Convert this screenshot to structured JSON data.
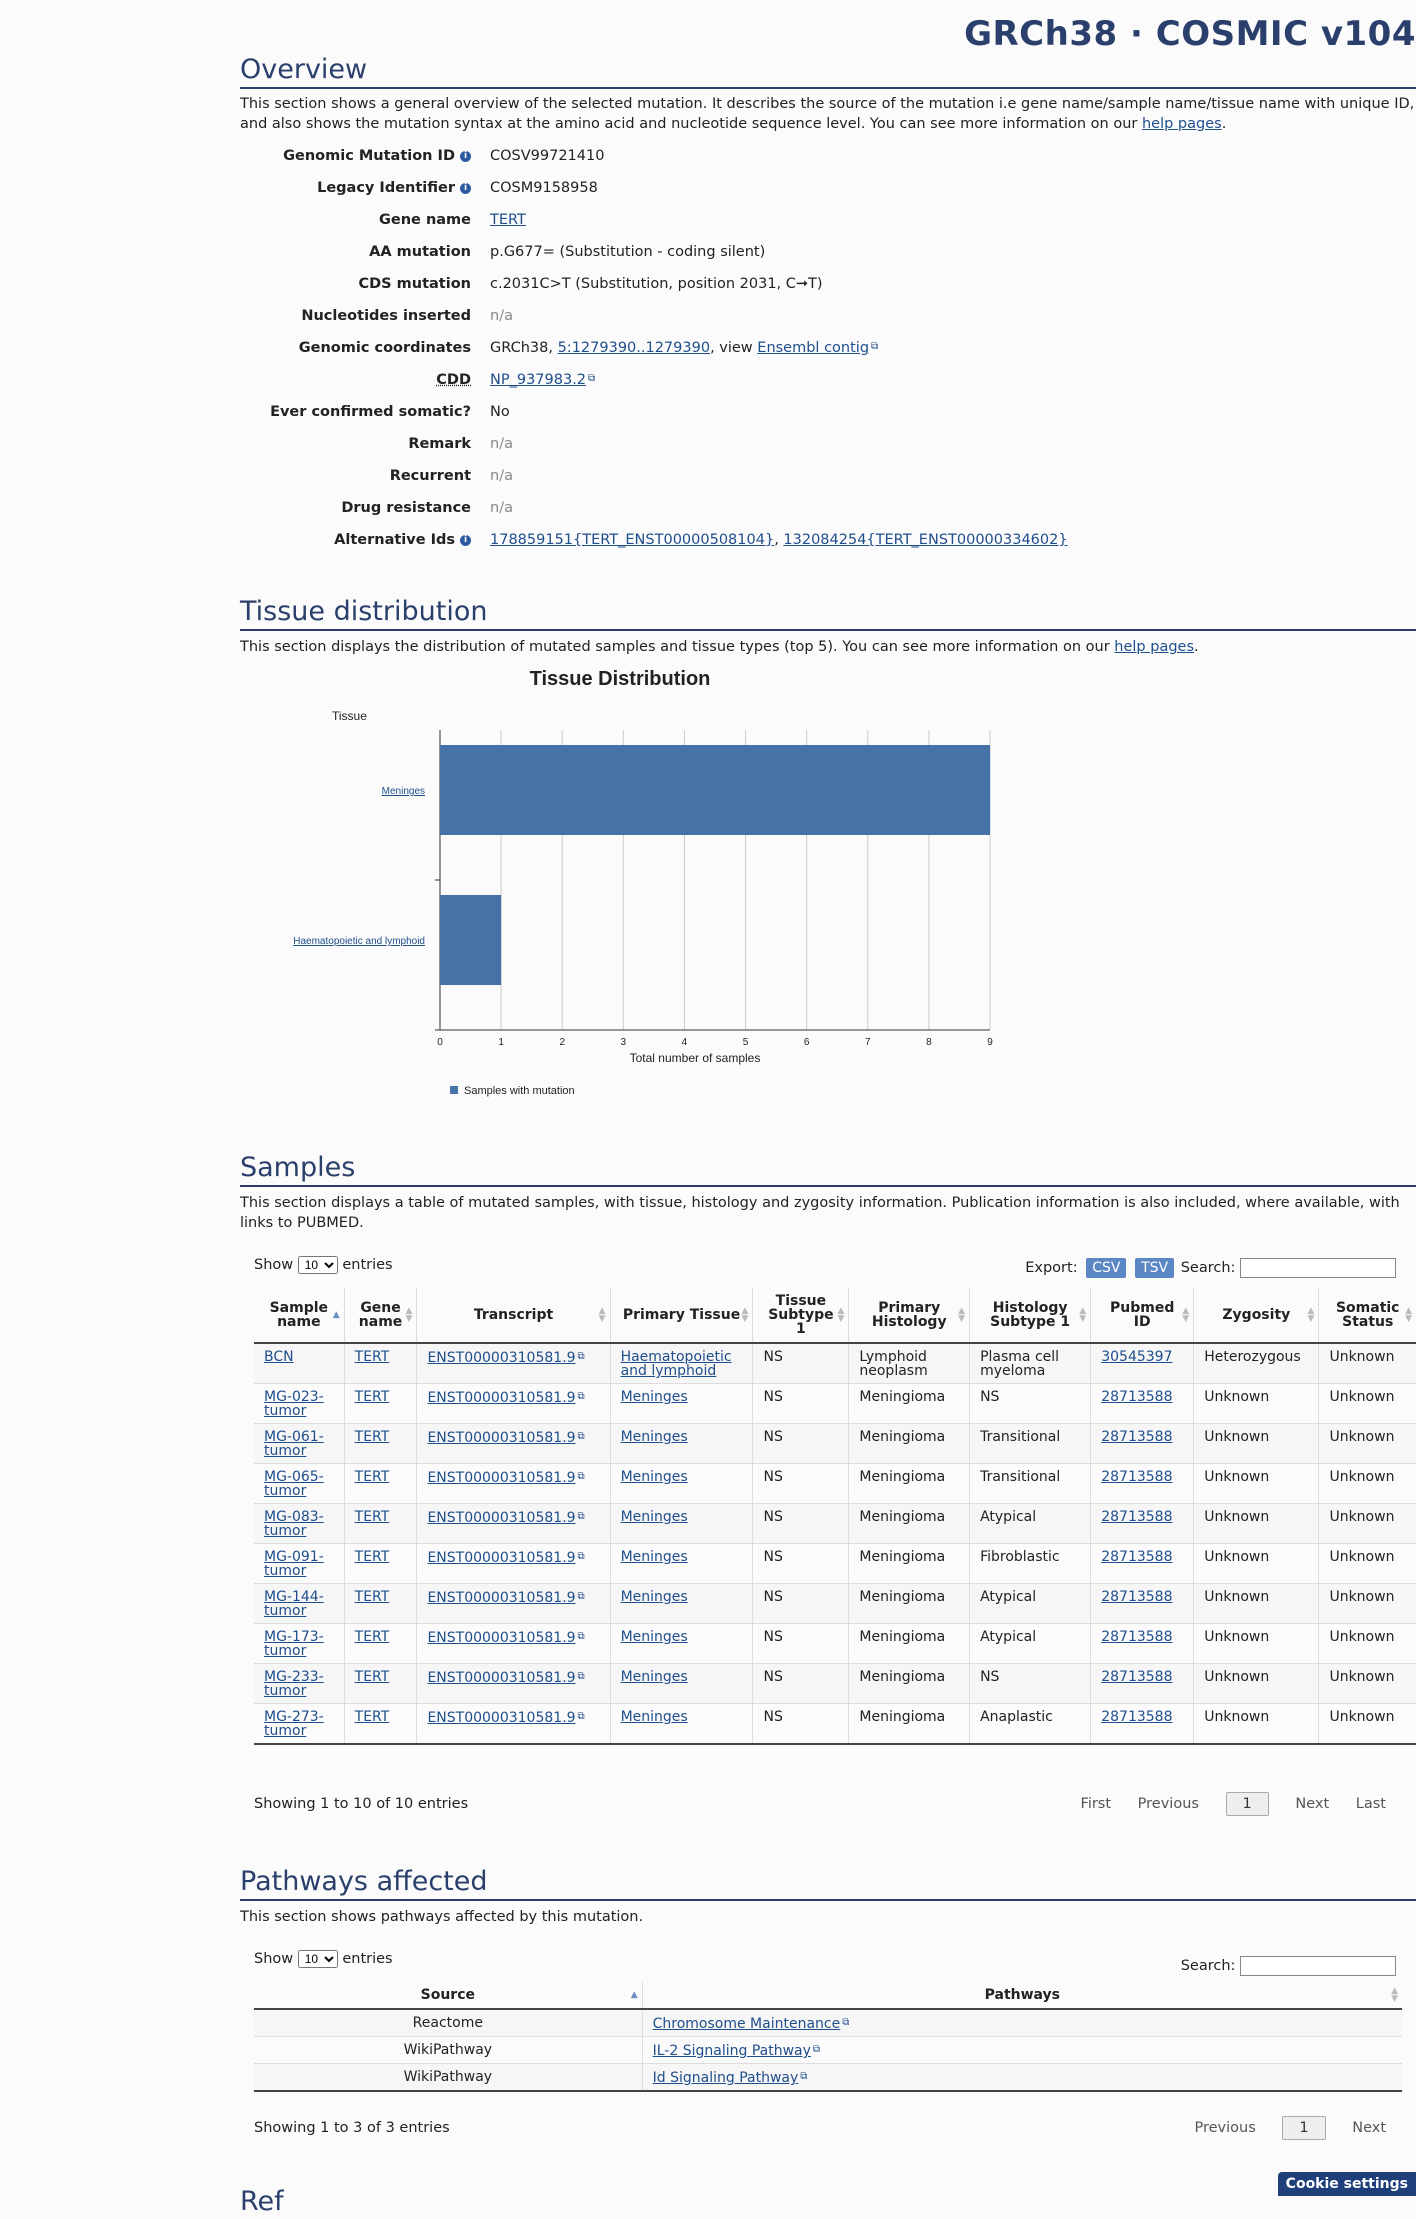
{
  "assembly_title": "GRCh38 · COSMIC v104",
  "overview": {
    "heading": "Overview",
    "description_pre": "This section shows a general overview of the selected mutation. It describes the source of the mutation i.e gene name/sample name/tissue name with unique ID, and also shows the mutation syntax at the amino acid and nucleotide sequence level. You can see more information on our ",
    "help_link": "help pages",
    "description_post": ".",
    "rows": {
      "genomic_mutation_id": {
        "label": "Genomic Mutation ID",
        "value": "COSV99721410"
      },
      "legacy_identifier": {
        "label": "Legacy Identifier",
        "value": "COSM9158958"
      },
      "gene_name": {
        "label": "Gene name",
        "value": "TERT"
      },
      "aa_mutation": {
        "label": "AA mutation",
        "value": "p.G677= (Substitution - coding silent)"
      },
      "cds_mutation": {
        "label": "CDS mutation",
        "value": "c.2031C>T (Substitution, position 2031, C➞T)"
      },
      "nucleotides_inserted": {
        "label": "Nucleotides inserted",
        "value": "n/a"
      },
      "genomic_coordinates": {
        "label": "Genomic coordinates",
        "pre": "GRCh38, ",
        "coord_link": "5:1279390..1279390",
        "mid": ", view ",
        "ensembl_link": "Ensembl contig"
      },
      "cdd": {
        "label": "CDD",
        "value": "NP_937983.2"
      },
      "ever_confirmed_somatic": {
        "label": "Ever confirmed somatic?",
        "value": "No"
      },
      "remark": {
        "label": "Remark",
        "value": "n/a"
      },
      "recurrent": {
        "label": "Recurrent",
        "value": "n/a"
      },
      "drug_resistance": {
        "label": "Drug resistance",
        "value": "n/a"
      },
      "alternative_ids": {
        "label": "Alternative Ids",
        "link1": "178859151{TERT_ENST00000508104}",
        "sep": ", ",
        "link2": "132084254{TERT_ENST00000334602}"
      }
    }
  },
  "tissue": {
    "heading": "Tissue distribution",
    "description_pre": "This section displays the distribution of mutated samples and tissue types (top 5). You can see more information on our ",
    "help_link": "help pages",
    "description_post": "."
  },
  "chart_data": {
    "type": "bar",
    "orientation": "horizontal",
    "title": "Tissue Distribution",
    "ylabel": "Tissue",
    "xlabel": "Total number of samples",
    "categories": [
      "Meninges",
      "Haematopoietic and lymphoid"
    ],
    "series": [
      {
        "name": "Samples with mutation",
        "values": [
          9,
          1
        ],
        "color": "#4573a7"
      }
    ],
    "xlim": [
      0,
      9
    ],
    "ticks": [
      "0",
      "1",
      "2",
      "3",
      "4",
      "5",
      "6",
      "7",
      "8",
      "9"
    ],
    "grid": true,
    "legend": "bottom"
  },
  "samples": {
    "heading": "Samples",
    "description": "This section displays a table of mutated samples, with tissue, histology and zygosity information. Publication information is also included, where available, with links to PUBMED.",
    "show_label": "Show",
    "entries_label": "entries",
    "page_length": "10",
    "export_label": "Export:",
    "csv": "CSV",
    "tsv": "TSV",
    "search_label": "Search:",
    "columns": [
      "Sample name",
      "Gene name",
      "Transcript",
      "Primary Tissue",
      "Tissue Subtype 1",
      "Primary Histology",
      "Histology Subtype 1",
      "Pubmed ID",
      "Zygosity",
      "Somatic Status"
    ],
    "rows": [
      [
        "BCN",
        "TERT",
        "ENST00000310581.9",
        "Haematopoietic and lymphoid",
        "NS",
        "Lymphoid neoplasm",
        "Plasma cell myeloma",
        "30545397",
        "Heterozygous",
        "Unknown"
      ],
      [
        "MG-023-tumor",
        "TERT",
        "ENST00000310581.9",
        "Meninges",
        "NS",
        "Meningioma",
        "NS",
        "28713588",
        "Unknown",
        "Unknown"
      ],
      [
        "MG-061-tumor",
        "TERT",
        "ENST00000310581.9",
        "Meninges",
        "NS",
        "Meningioma",
        "Transitional",
        "28713588",
        "Unknown",
        "Unknown"
      ],
      [
        "MG-065-tumor",
        "TERT",
        "ENST00000310581.9",
        "Meninges",
        "NS",
        "Meningioma",
        "Transitional",
        "28713588",
        "Unknown",
        "Unknown"
      ],
      [
        "MG-083-tumor",
        "TERT",
        "ENST00000310581.9",
        "Meninges",
        "NS",
        "Meningioma",
        "Atypical",
        "28713588",
        "Unknown",
        "Unknown"
      ],
      [
        "MG-091-tumor",
        "TERT",
        "ENST00000310581.9",
        "Meninges",
        "NS",
        "Meningioma",
        "Fibroblastic",
        "28713588",
        "Unknown",
        "Unknown"
      ],
      [
        "MG-144-tumor",
        "TERT",
        "ENST00000310581.9",
        "Meninges",
        "NS",
        "Meningioma",
        "Atypical",
        "28713588",
        "Unknown",
        "Unknown"
      ],
      [
        "MG-173-tumor",
        "TERT",
        "ENST00000310581.9",
        "Meninges",
        "NS",
        "Meningioma",
        "Atypical",
        "28713588",
        "Unknown",
        "Unknown"
      ],
      [
        "MG-233-tumor",
        "TERT",
        "ENST00000310581.9",
        "Meninges",
        "NS",
        "Meningioma",
        "NS",
        "28713588",
        "Unknown",
        "Unknown"
      ],
      [
        "MG-273-tumor",
        "TERT",
        "ENST00000310581.9",
        "Meninges",
        "NS",
        "Meningioma",
        "Anaplastic",
        "28713588",
        "Unknown",
        "Unknown"
      ]
    ],
    "info": "Showing 1 to 10 of 10 entries",
    "pager": {
      "first": "First",
      "previous": "Previous",
      "current": "1",
      "next": "Next",
      "last": "Last"
    }
  },
  "pathways": {
    "heading": "Pathways affected",
    "description": "This section shows pathways affected by this mutation.",
    "show_label": "Show",
    "entries_label": "entries",
    "page_length": "10",
    "search_label": "Search:",
    "columns": [
      "Source",
      "Pathways"
    ],
    "rows": [
      [
        "Reactome",
        "Chromosome Maintenance"
      ],
      [
        "WikiPathway",
        "IL-2 Signaling Pathway"
      ],
      [
        "WikiPathway",
        "Id Signaling Pathway"
      ]
    ],
    "info": "Showing 1 to 3 of 3 entries",
    "pager": {
      "previous": "Previous",
      "current": "1",
      "next": "Next"
    }
  },
  "next_heading_partial": "Ref",
  "cookie_settings": "Cookie settings"
}
